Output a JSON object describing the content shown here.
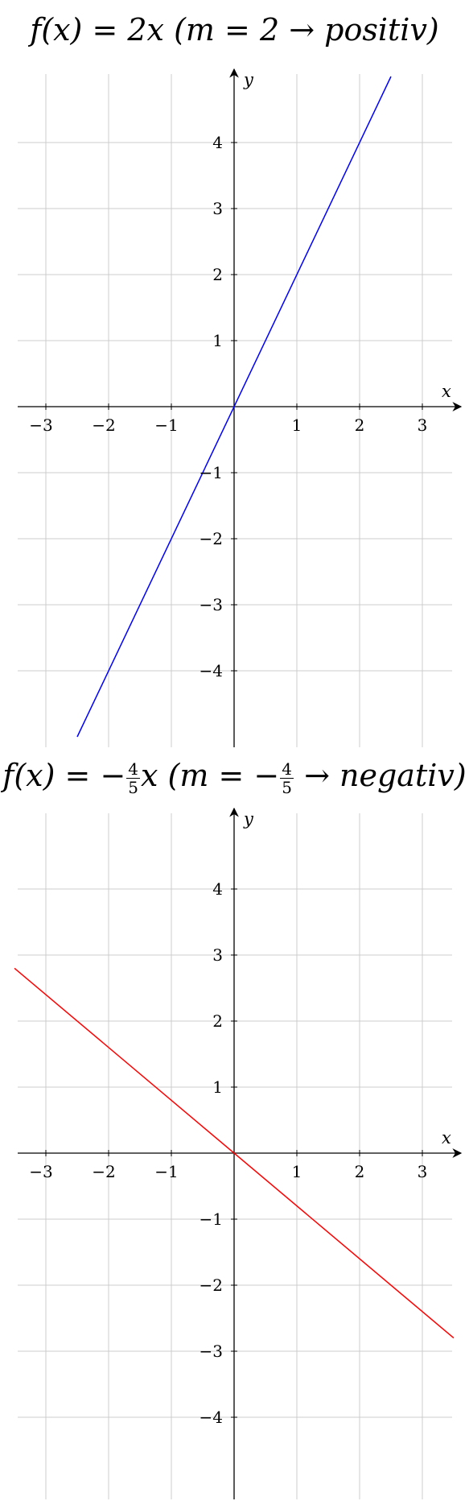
{
  "chart_data": [
    {
      "type": "line",
      "title": {
        "fx": "f(x) = 2x",
        "paren_open": "(m = 2",
        "arrow": "→",
        "word": "positiv",
        "paren_close": ")"
      },
      "xlabel": "x",
      "ylabel": "y",
      "xlim": [
        -3.5,
        3.5
      ],
      "ylim": [
        -5.2,
        5.0
      ],
      "grid": true,
      "x_ticks": [
        -3,
        -2,
        -1,
        1,
        2,
        3
      ],
      "y_ticks": [
        -4,
        -3,
        -2,
        -1,
        1,
        2,
        3,
        4
      ],
      "x_tick_labels": [
        "−3",
        "−2",
        "−1",
        "1",
        "2",
        "3"
      ],
      "y_tick_labels": [
        "−4",
        "−3",
        "−2",
        "−1",
        "1",
        "2",
        "3",
        "4"
      ],
      "series": [
        {
          "slope": 2,
          "x": [
            -2.5,
            2.5
          ],
          "y": [
            -5,
            5
          ],
          "color": "#0000ff"
        }
      ]
    },
    {
      "type": "line",
      "title": {
        "fx_a": "f(x) = −",
        "fx_num": "4",
        "fx_den": "5",
        "fx_b": "x",
        "paren_a": "(m = −",
        "m_num": "4",
        "m_den": "5",
        "arrow": "→",
        "word": "negativ",
        "paren_close": ")"
      },
      "xlabel": "x",
      "ylabel": "y",
      "xlim": [
        -3.5,
        3.5
      ],
      "ylim": [
        -5.0,
        5.0
      ],
      "grid": true,
      "x_ticks": [
        -3,
        -2,
        -1,
        1,
        2,
        3
      ],
      "y_ticks": [
        -4,
        -3,
        -2,
        -1,
        1,
        2,
        3,
        4
      ],
      "x_tick_labels": [
        "−3",
        "−2",
        "−1",
        "1",
        "2",
        "3"
      ],
      "y_tick_labels": [
        "−4",
        "−3",
        "−2",
        "−1",
        "1",
        "2",
        "3",
        "4"
      ],
      "series": [
        {
          "slope": -0.8,
          "x": [
            -3.5,
            3.5
          ],
          "y": [
            2.8,
            -2.8
          ],
          "color": "#ff0000"
        }
      ]
    }
  ]
}
